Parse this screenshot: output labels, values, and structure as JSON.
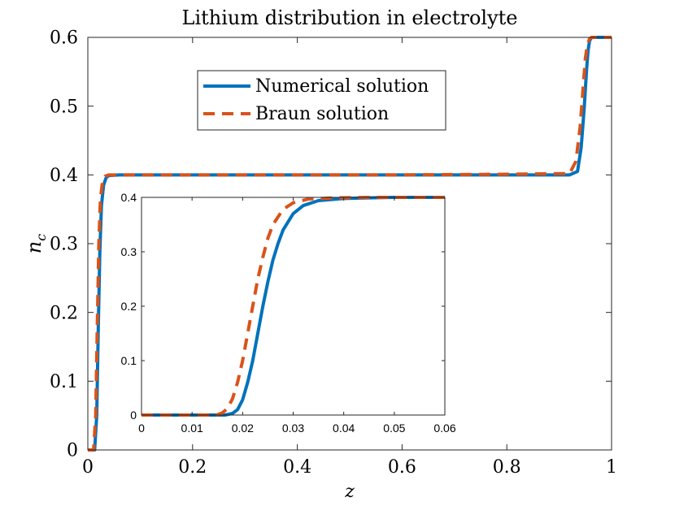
{
  "chart_data": [
    {
      "type": "line",
      "title": "Lithium distribution in electrolyte",
      "xlabel": "z",
      "ylabel": "n",
      "ylabel_subscript": "c",
      "xlim": [
        0,
        1
      ],
      "ylim": [
        0,
        0.6
      ],
      "xticks": [
        0,
        0.2,
        0.4,
        0.6,
        0.8,
        1
      ],
      "xtick_labels": [
        "0",
        "0.2",
        "0.4",
        "0.6",
        "0.8",
        "1"
      ],
      "yticks": [
        0,
        0.1,
        0.2,
        0.3,
        0.4,
        0.5,
        0.6
      ],
      "ytick_labels": [
        "0",
        "0.1",
        "0.2",
        "0.3",
        "0.4",
        "0.5",
        "0.6"
      ],
      "legend": {
        "placement": "top-center",
        "entries": [
          "Numerical solution",
          "Braun solution"
        ]
      },
      "series": [
        {
          "name": "Numerical solution",
          "color": "#0072BD",
          "style": "solid",
          "x": [
            0,
            0.013,
            0.017,
            0.02,
            0.023,
            0.026,
            0.03,
            0.035,
            0.04,
            0.06,
            0.2,
            0.4,
            0.6,
            0.8,
            0.92,
            0.935,
            0.942,
            0.948,
            0.952,
            0.955,
            0.958,
            0.962,
            1
          ],
          "y": [
            0,
            0,
            0.05,
            0.18,
            0.29,
            0.355,
            0.385,
            0.396,
            0.399,
            0.4,
            0.4,
            0.4,
            0.4,
            0.4,
            0.4,
            0.405,
            0.44,
            0.5,
            0.55,
            0.58,
            0.595,
            0.6,
            0.6
          ]
        },
        {
          "name": "Braun solution",
          "color": "#D95319",
          "style": "dashed",
          "x": [
            0,
            0.011,
            0.015,
            0.018,
            0.021,
            0.024,
            0.028,
            0.033,
            0.04,
            0.06,
            0.2,
            0.4,
            0.6,
            0.8,
            0.92,
            0.932,
            0.94,
            0.946,
            0.95,
            0.954,
            0.958,
            0.962,
            1
          ],
          "y": [
            0,
            0,
            0.05,
            0.18,
            0.3,
            0.365,
            0.39,
            0.398,
            0.4,
            0.4,
            0.4,
            0.4,
            0.4,
            0.401,
            0.402,
            0.42,
            0.47,
            0.53,
            0.57,
            0.59,
            0.598,
            0.6,
            0.6
          ]
        }
      ]
    },
    {
      "type": "line",
      "inset": true,
      "xlim": [
        0,
        0.06
      ],
      "ylim": [
        0,
        0.4
      ],
      "xticks": [
        0,
        0.01,
        0.02,
        0.03,
        0.04,
        0.05,
        0.06
      ],
      "xtick_labels": [
        "0",
        "0.01",
        "0.02",
        "0.03",
        "0.04",
        "0.05",
        "0.06"
      ],
      "yticks": [
        0,
        0.1,
        0.2,
        0.3,
        0.4
      ],
      "ytick_labels": [
        "0",
        "0.1",
        "0.2",
        "0.3",
        "0.4"
      ],
      "series": [
        {
          "name": "Numerical solution",
          "color": "#0072BD",
          "style": "solid",
          "x": [
            0,
            0.0165,
            0.018,
            0.019,
            0.02,
            0.021,
            0.022,
            0.023,
            0.024,
            0.025,
            0.026,
            0.027,
            0.028,
            0.03,
            0.032,
            0.035,
            0.04,
            0.045,
            0.05,
            0.06
          ],
          "y": [
            0,
            0,
            0.003,
            0.01,
            0.028,
            0.06,
            0.1,
            0.15,
            0.2,
            0.245,
            0.285,
            0.315,
            0.34,
            0.37,
            0.385,
            0.394,
            0.398,
            0.399,
            0.4,
            0.4
          ]
        },
        {
          "name": "Braun solution",
          "color": "#D95319",
          "style": "dashed",
          "x": [
            0,
            0.0148,
            0.016,
            0.017,
            0.018,
            0.019,
            0.02,
            0.021,
            0.022,
            0.023,
            0.024,
            0.025,
            0.026,
            0.028,
            0.03,
            0.033,
            0.038,
            0.045,
            0.05,
            0.06
          ],
          "y": [
            0,
            0,
            0.004,
            0.012,
            0.03,
            0.06,
            0.1,
            0.15,
            0.2,
            0.25,
            0.29,
            0.325,
            0.35,
            0.378,
            0.39,
            0.397,
            0.399,
            0.4,
            0.4,
            0.4
          ]
        }
      ]
    }
  ]
}
